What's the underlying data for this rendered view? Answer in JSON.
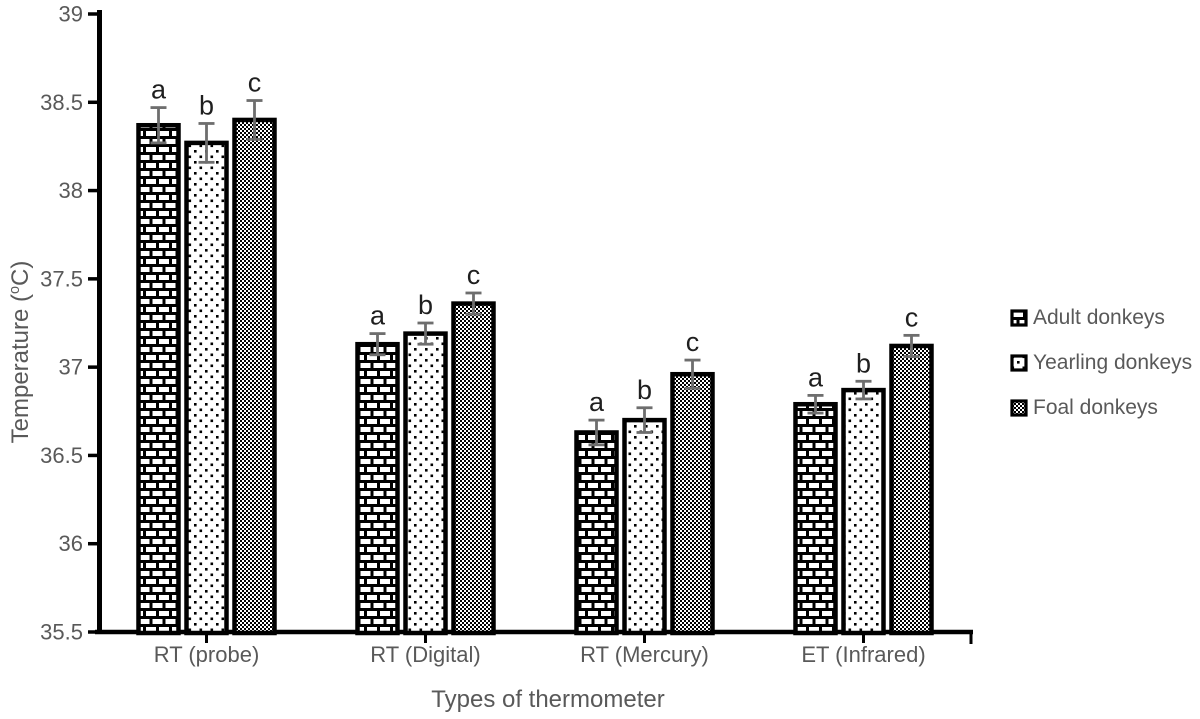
{
  "chart_data": {
    "type": "bar",
    "title": "",
    "xlabel": "Types of thermometer",
    "ylabel": "Temperature (°C)",
    "ylabel_parts": [
      "Temperature (",
      "o",
      "C)"
    ],
    "ylim": [
      35.5,
      39
    ],
    "ytick_labels": [
      "39",
      "38.5",
      "38",
      "37.5",
      "37",
      "36.5",
      "36",
      "35.5"
    ],
    "categories": [
      "RT (probe)",
      "RT (Digital)",
      "RT (Mercury)",
      "ET (Infrared)"
    ],
    "series": [
      {
        "name": "Adult donkeys",
        "pattern": "brick",
        "letter": "a",
        "values": [
          38.37,
          37.13,
          36.63,
          36.79
        ],
        "errors": [
          0.1,
          0.06,
          0.07,
          0.05
        ]
      },
      {
        "name": "Yearling donkeys",
        "pattern": "dots",
        "letter": "b",
        "values": [
          38.27,
          37.19,
          36.7,
          36.87
        ],
        "errors": [
          0.11,
          0.06,
          0.07,
          0.05
        ]
      },
      {
        "name": "Foal donkeys",
        "pattern": "checker",
        "letter": "c",
        "values": [
          38.4,
          37.36,
          36.96,
          37.12
        ],
        "errors": [
          0.11,
          0.06,
          0.08,
          0.06
        ]
      }
    ],
    "legend_position": "right",
    "grid": false,
    "colors": {
      "axis": "#000000",
      "text": "#595959",
      "error_bar": "#6e6e6e",
      "bar_outline": "#000000",
      "pattern_ink": "#000000",
      "background": "#ffffff",
      "letter": "#1f1f1f"
    }
  }
}
